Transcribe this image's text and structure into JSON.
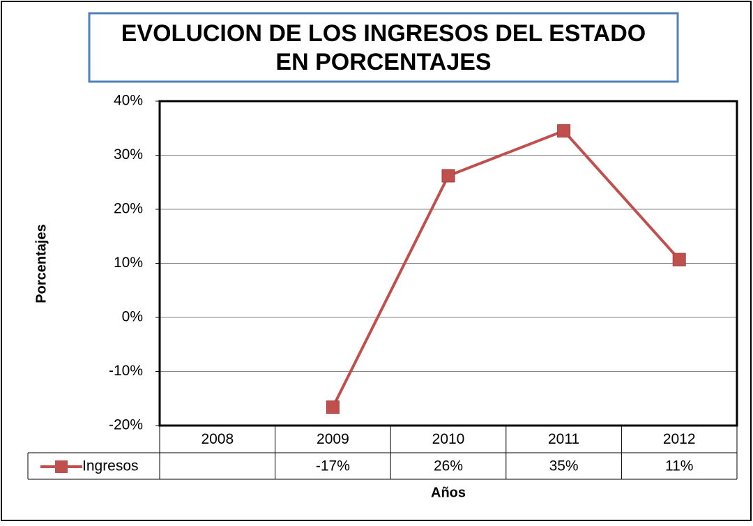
{
  "chart_data": {
    "type": "line",
    "title": [
      "EVOLUCION DE LOS INGRESOS DEL ESTADO",
      "EN PORCENTAJES"
    ],
    "x_label": "Años",
    "y_label": "Porcentajes",
    "categories": [
      "2008",
      "2009",
      "2010",
      "2011",
      "2012"
    ],
    "series": [
      {
        "name": "Ingresos",
        "color": "#c0504d",
        "values": [
          null,
          -16.6,
          26.2,
          34.5,
          10.7
        ],
        "value_labels": [
          null,
          "-17%",
          "26%",
          "35%",
          "11%"
        ]
      }
    ],
    "ylim": [
      -20,
      40
    ],
    "yticks": [
      {
        "value": -20,
        "label": "-20%"
      },
      {
        "value": -10,
        "label": "-10%"
      },
      {
        "value": 0,
        "label": "0%"
      },
      {
        "value": 10,
        "label": "10%"
      },
      {
        "value": 20,
        "label": "20%"
      },
      {
        "value": 30,
        "label": "30%"
      },
      {
        "value": 40,
        "label": "40%"
      }
    ],
    "grid": true,
    "data_table": true
  }
}
